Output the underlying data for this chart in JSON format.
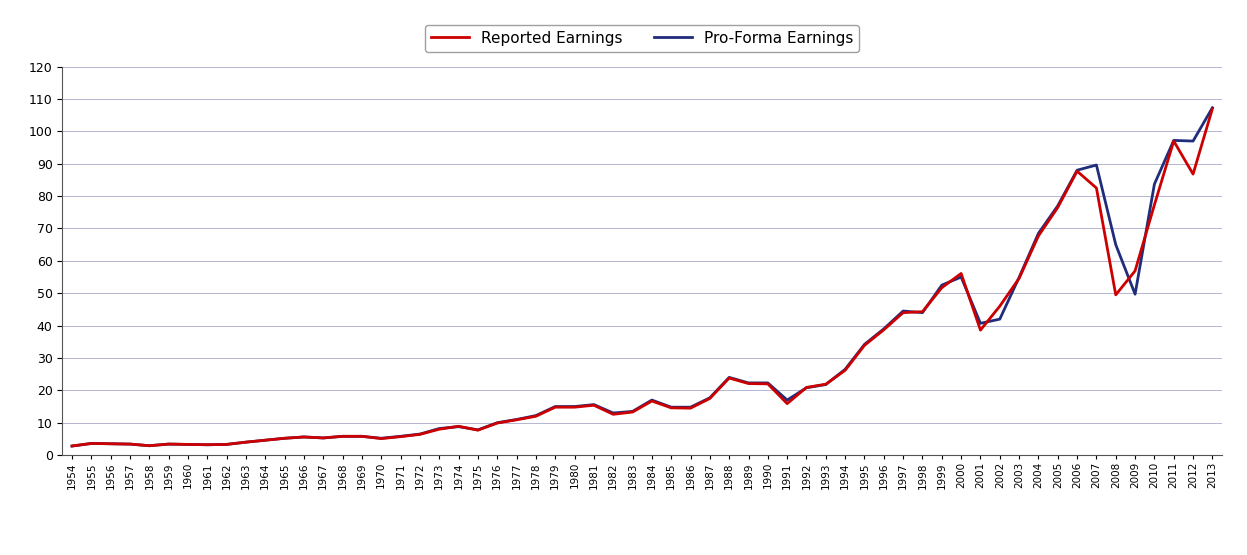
{
  "title": "",
  "legend_labels": [
    "Reported Earnings",
    "Pro-Forma Earnings"
  ],
  "reported_color": "#CC0000",
  "proforma_color": "#1F2D7B",
  "background_color": "#FFFFFF",
  "grid_color": "#AAAACC",
  "ylim": [
    0,
    120
  ],
  "yticks": [
    0,
    10,
    20,
    30,
    40,
    50,
    60,
    70,
    80,
    90,
    100,
    110,
    120
  ],
  "years": [
    1954,
    1955,
    1956,
    1957,
    1958,
    1959,
    1960,
    1961,
    1962,
    1963,
    1964,
    1965,
    1966,
    1967,
    1968,
    1969,
    1970,
    1971,
    1972,
    1973,
    1974,
    1975,
    1976,
    1977,
    1978,
    1979,
    1980,
    1981,
    1982,
    1983,
    1984,
    1985,
    1986,
    1987,
    1988,
    1989,
    1990,
    1991,
    1992,
    1993,
    1994,
    1995,
    1996,
    1997,
    1998,
    1999,
    2000,
    2001,
    2002,
    2003,
    2004,
    2005,
    2006,
    2007,
    2008,
    2009,
    2010,
    2011,
    2012,
    2013
  ],
  "reported_earnings": [
    2.8,
    3.6,
    3.5,
    3.4,
    2.9,
    3.4,
    3.3,
    3.2,
    3.3,
    4.0,
    4.6,
    5.2,
    5.6,
    5.3,
    5.8,
    5.8,
    5.1,
    5.7,
    6.4,
    8.0,
    8.9,
    7.7,
    9.9,
    10.9,
    12.0,
    14.8,
    14.8,
    15.4,
    12.6,
    13.3,
    16.7,
    14.6,
    14.5,
    17.5,
    23.8,
    22.1,
    22.0,
    15.9,
    20.9,
    21.9,
    26.2,
    33.9,
    38.7,
    44.0,
    44.3,
    51.7,
    56.1,
    38.6,
    46.0,
    54.6,
    67.7,
    76.5,
    87.7,
    82.5,
    49.5,
    56.9,
    77.3,
    97.0,
    86.8,
    107.0
  ],
  "proforma_earnings": [
    2.8,
    3.6,
    3.5,
    3.4,
    2.9,
    3.4,
    3.3,
    3.2,
    3.3,
    4.0,
    4.6,
    5.2,
    5.6,
    5.3,
    5.8,
    5.8,
    5.2,
    5.8,
    6.5,
    8.2,
    8.8,
    7.8,
    10.0,
    11.0,
    12.2,
    15.0,
    15.0,
    15.6,
    13.0,
    13.5,
    17.0,
    14.8,
    14.8,
    17.7,
    24.0,
    22.3,
    22.3,
    17.0,
    20.8,
    21.8,
    26.5,
    34.2,
    39.0,
    44.5,
    44.0,
    52.5,
    55.0,
    40.7,
    42.0,
    54.9,
    68.5,
    77.0,
    88.0,
    89.6,
    65.0,
    49.7,
    83.7,
    97.2,
    97.0,
    107.3
  ]
}
